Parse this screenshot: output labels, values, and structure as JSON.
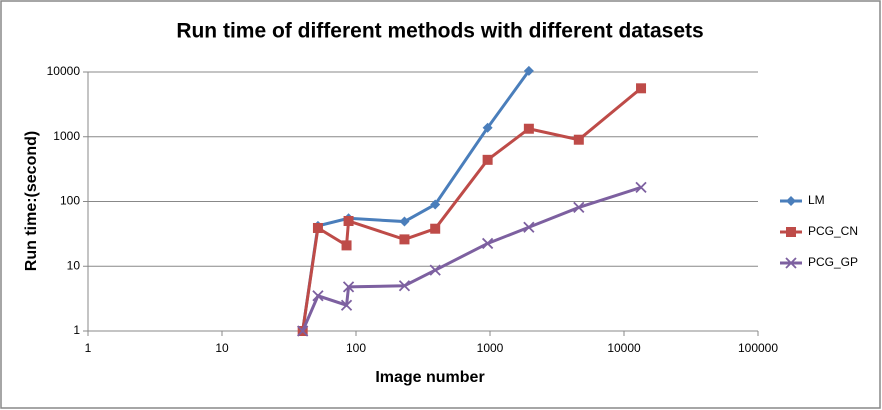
{
  "chart_data": {
    "type": "line",
    "title": "Run time of different methods with different datasets",
    "x_label": "Image number",
    "y_label": "Run time:(second)",
    "xscale": "log",
    "yscale": "log",
    "xlim": [
      1,
      100000
    ],
    "xticks": [
      1,
      10,
      100,
      1000,
      10000,
      100000
    ],
    "ylim": [
      1,
      10000
    ],
    "yticks": [
      1,
      10,
      100,
      1000,
      10000
    ],
    "grid": true,
    "legend": "right",
    "series": [
      {
        "name": "LM",
        "color": "#4a7ebb",
        "marker": "diamond",
        "x": [
          40,
          52,
          88,
          230,
          390,
          960,
          1950
        ],
        "values": [
          1,
          42,
          55,
          49,
          90,
          1380,
          10400
        ]
      },
      {
        "name": "PCG_CN",
        "color": "#be4b48",
        "marker": "square",
        "x": [
          40,
          52,
          85,
          88,
          230,
          390,
          960,
          1950,
          4600,
          13400
        ],
        "values": [
          1,
          39,
          21,
          50,
          26,
          38,
          440,
          1330,
          900,
          5600
        ]
      },
      {
        "name": "PCG_GP",
        "color": "#7d60a0",
        "marker": "x",
        "x": [
          40,
          52,
          85,
          88,
          230,
          390,
          960,
          1950,
          4600,
          13400
        ],
        "values": [
          1,
          3.5,
          2.5,
          4.8,
          5,
          8.7,
          22.5,
          40,
          81,
          165
        ]
      }
    ]
  }
}
